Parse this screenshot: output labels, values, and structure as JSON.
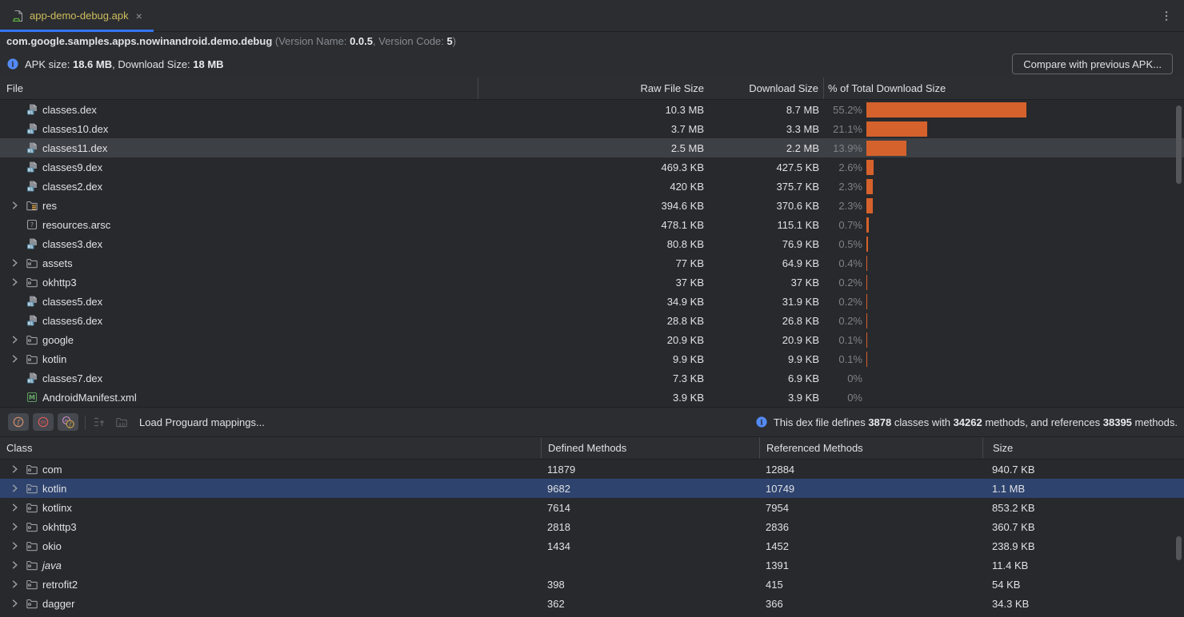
{
  "colors": {
    "accent_blue": "#3574f0",
    "bar_orange": "#d5622c",
    "selection_blue": "#2e436e",
    "selection_gray": "#3d4044",
    "tab_label_yellow": "#cfbd5e",
    "background": "#2b2d30"
  },
  "tab_bar": {
    "tab_label": "app-demo-debug.apk",
    "tab_icon": "apk-file-icon",
    "close_glyph": "×",
    "menu_icon": "kebab-menu-icon"
  },
  "header": {
    "package_name": "com.google.samples.apps.nowinandroid.demo.debug",
    "meta_prefix": " (Version Name: ",
    "version_name": "0.0.5",
    "meta_mid": ", Version Code: ",
    "version_code": "5",
    "meta_suffix": ")",
    "apk_size_label": "APK size: ",
    "apk_size": "18.6 MB",
    "download_size_label": ", Download Size: ",
    "download_size": "18 MB",
    "compare_button": "Compare with previous APK..."
  },
  "file_table": {
    "columns": {
      "file": "File",
      "raw": "Raw File Size",
      "download": "Download Size",
      "pct": "% of Total Download Size"
    },
    "rows": [
      {
        "name": "classes.dex",
        "icon": "dex-file-icon",
        "expandable": false,
        "raw": "10.3 MB",
        "download": "8.7 MB",
        "pct_label": "55.2%",
        "pct": 55.2,
        "selected": false
      },
      {
        "name": "classes10.dex",
        "icon": "dex-file-icon",
        "expandable": false,
        "raw": "3.7 MB",
        "download": "3.3 MB",
        "pct_label": "21.1%",
        "pct": 21.1,
        "selected": false
      },
      {
        "name": "classes11.dex",
        "icon": "dex-file-icon",
        "expandable": false,
        "raw": "2.5 MB",
        "download": "2.2 MB",
        "pct_label": "13.9%",
        "pct": 13.9,
        "selected": true
      },
      {
        "name": "classes9.dex",
        "icon": "dex-file-icon",
        "expandable": false,
        "raw": "469.3 KB",
        "download": "427.5 KB",
        "pct_label": "2.6%",
        "pct": 2.6,
        "selected": false
      },
      {
        "name": "classes2.dex",
        "icon": "dex-file-icon",
        "expandable": false,
        "raw": "420 KB",
        "download": "375.7 KB",
        "pct_label": "2.3%",
        "pct": 2.3,
        "selected": false
      },
      {
        "name": "res",
        "icon": "folder-res-icon",
        "expandable": true,
        "raw": "394.6 KB",
        "download": "370.6 KB",
        "pct_label": "2.3%",
        "pct": 2.3,
        "selected": false
      },
      {
        "name": "resources.arsc",
        "icon": "arsc-file-icon",
        "expandable": false,
        "raw": "478.1 KB",
        "download": "115.1 KB",
        "pct_label": "0.7%",
        "pct": 0.7,
        "selected": false
      },
      {
        "name": "classes3.dex",
        "icon": "dex-file-icon",
        "expandable": false,
        "raw": "80.8 KB",
        "download": "76.9 KB",
        "pct_label": "0.5%",
        "pct": 0.5,
        "selected": false
      },
      {
        "name": "assets",
        "icon": "folder-icon",
        "expandable": true,
        "raw": "77 KB",
        "download": "64.9 KB",
        "pct_label": "0.4%",
        "pct": 0.4,
        "selected": false
      },
      {
        "name": "okhttp3",
        "icon": "folder-icon",
        "expandable": true,
        "raw": "37 KB",
        "download": "37 KB",
        "pct_label": "0.2%",
        "pct": 0.2,
        "selected": false
      },
      {
        "name": "classes5.dex",
        "icon": "dex-file-icon",
        "expandable": false,
        "raw": "34.9 KB",
        "download": "31.9 KB",
        "pct_label": "0.2%",
        "pct": 0.2,
        "selected": false
      },
      {
        "name": "classes6.dex",
        "icon": "dex-file-icon",
        "expandable": false,
        "raw": "28.8 KB",
        "download": "26.8 KB",
        "pct_label": "0.2%",
        "pct": 0.2,
        "selected": false
      },
      {
        "name": "google",
        "icon": "folder-icon",
        "expandable": true,
        "raw": "20.9 KB",
        "download": "20.9 KB",
        "pct_label": "0.1%",
        "pct": 0.1,
        "selected": false
      },
      {
        "name": "kotlin",
        "icon": "folder-icon",
        "expandable": true,
        "raw": "9.9 KB",
        "download": "9.9 KB",
        "pct_label": "0.1%",
        "pct": 0.1,
        "selected": false
      },
      {
        "name": "classes7.dex",
        "icon": "dex-file-icon",
        "expandable": false,
        "raw": "7.3 KB",
        "download": "6.9 KB",
        "pct_label": "0%",
        "pct": 0,
        "selected": false
      },
      {
        "name": "AndroidManifest.xml",
        "icon": "manifest-file-icon",
        "expandable": false,
        "raw": "3.9 KB",
        "download": "3.9 KB",
        "pct_label": "0%",
        "pct": 0,
        "selected": false
      }
    ]
  },
  "dex_toolbar": {
    "toggle_icons": [
      "show-fields-toggle-icon",
      "show-methods-toggle-icon",
      "show-referenced-nodes-toggle-icon"
    ],
    "ghost_icons": [
      "tree-expand-icon",
      "mappings-folder-icon"
    ],
    "load_mappings_label": "Load Proguard mappings...",
    "summary": {
      "prefix": "This dex file defines ",
      "classes": "3878",
      "mid1": " classes with ",
      "methods": "34262",
      "mid2": " methods, and references ",
      "referenced": "38395",
      "suffix": " methods."
    }
  },
  "class_table": {
    "columns": {
      "class": "Class",
      "defined": "Defined Methods",
      "referenced": "Referenced Methods",
      "size": "Size"
    },
    "rows": [
      {
        "name": "com",
        "defined": "11879",
        "referenced": "12884",
        "size": "940.7 KB",
        "selected": false,
        "italic": false
      },
      {
        "name": "kotlin",
        "defined": "9682",
        "referenced": "10749",
        "size": "1.1 MB",
        "selected": true,
        "italic": false
      },
      {
        "name": "kotlinx",
        "defined": "7614",
        "referenced": "7954",
        "size": "853.2 KB",
        "selected": false,
        "italic": false
      },
      {
        "name": "okhttp3",
        "defined": "2818",
        "referenced": "2836",
        "size": "360.7 KB",
        "selected": false,
        "italic": false
      },
      {
        "name": "okio",
        "defined": "1434",
        "referenced": "1452",
        "size": "238.9 KB",
        "selected": false,
        "italic": false
      },
      {
        "name": "java",
        "defined": "",
        "referenced": "1391",
        "size": "11.4 KB",
        "selected": false,
        "italic": true
      },
      {
        "name": "retrofit2",
        "defined": "398",
        "referenced": "415",
        "size": "54 KB",
        "selected": false,
        "italic": false
      },
      {
        "name": "dagger",
        "defined": "362",
        "referenced": "366",
        "size": "34.3 KB",
        "selected": false,
        "italic": false
      }
    ]
  }
}
